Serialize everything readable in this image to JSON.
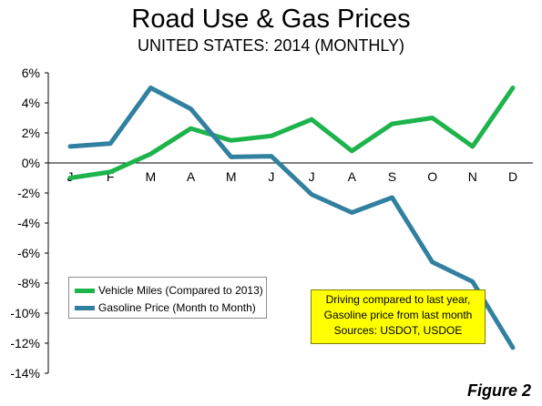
{
  "title": "Road Use & Gas Prices",
  "subtitle": "UNITED STATES: 2014 (MONTHLY)",
  "figure_label": "Figure 2",
  "note": [
    "Driving compared to last year,",
    "Gasoline price from last month",
    "Sources: USDOT, USDOE"
  ],
  "colors": {
    "vehicle_miles": "#1cb44b",
    "gasoline": "#31809f",
    "note_bg": "#ffff00",
    "grid": "#000000"
  },
  "chart_data": {
    "type": "line",
    "title": "Road Use & Gas Prices",
    "subtitle": "UNITED STATES: 2014 (MONTHLY)",
    "categories": [
      "J",
      "F",
      "M",
      "A",
      "M",
      "J",
      "J",
      "A",
      "S",
      "O",
      "N",
      "D"
    ],
    "ylim": [
      -14,
      6
    ],
    "y_ticks": [
      "6%",
      "4%",
      "2%",
      "0%",
      "-2%",
      "-4%",
      "-6%",
      "-8%",
      "-10%",
      "-12%",
      "-14%"
    ],
    "grid": false,
    "legend_position": "bottom-left",
    "series": [
      {
        "name": "Vehicle Miles (Compared to 2013)",
        "values": [
          -1.0,
          -0.6,
          0.6,
          2.3,
          1.5,
          1.8,
          2.9,
          0.8,
          2.6,
          3.0,
          1.1,
          5.0
        ]
      },
      {
        "name": "Gasoline Price (Month to Month)",
        "values": [
          1.1,
          1.3,
          5.0,
          3.6,
          0.4,
          0.45,
          -2.1,
          -3.3,
          -2.3,
          -6.6,
          -7.9,
          -12.3
        ]
      }
    ]
  }
}
